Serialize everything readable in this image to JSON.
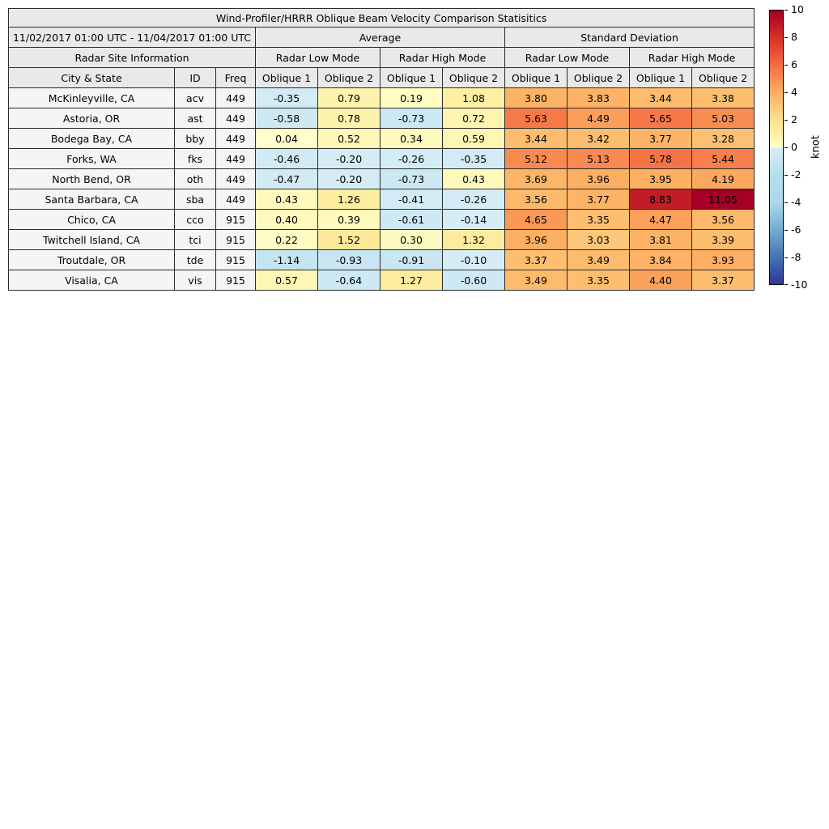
{
  "chart_data": {
    "type": "table",
    "title": "Wind-Profiler/HRRR Oblique Beam Velocity Comparison Statisitics",
    "date_range": "11/02/2017 01:00 UTC - 11/04/2017 01:00 UTC",
    "groups": {
      "average": "Average",
      "standard_deviation": "Standard Deviation",
      "site_info": "Radar Site Information",
      "low_mode": "Radar Low Mode",
      "high_mode": "Radar High Mode"
    },
    "columns": {
      "city": "City & State",
      "id": "ID",
      "freq": "Freq",
      "oblique1": "Oblique 1",
      "oblique2": "Oblique 2"
    },
    "rows": [
      {
        "city": "McKinleyville, CA",
        "id": "acv",
        "freq": "449",
        "values": [
          -0.35,
          0.79,
          0.19,
          1.08,
          3.8,
          3.83,
          3.44,
          3.38
        ]
      },
      {
        "city": "Astoria, OR",
        "id": "ast",
        "freq": "449",
        "values": [
          -0.58,
          0.78,
          -0.73,
          0.72,
          5.63,
          4.49,
          5.65,
          5.03
        ]
      },
      {
        "city": "Bodega Bay, CA",
        "id": "bby",
        "freq": "449",
        "values": [
          0.04,
          0.52,
          0.34,
          0.59,
          3.44,
          3.42,
          3.77,
          3.28
        ]
      },
      {
        "city": "Forks, WA",
        "id": "fks",
        "freq": "449",
        "values": [
          -0.46,
          -0.2,
          -0.26,
          -0.35,
          5.12,
          5.13,
          5.78,
          5.44
        ]
      },
      {
        "city": "North Bend, OR",
        "id": "oth",
        "freq": "449",
        "values": [
          -0.47,
          -0.2,
          -0.73,
          0.43,
          3.69,
          3.96,
          3.95,
          4.19
        ]
      },
      {
        "city": "Santa Barbara, CA",
        "id": "sba",
        "freq": "449",
        "values": [
          0.43,
          1.26,
          -0.41,
          -0.26,
          3.56,
          3.77,
          8.83,
          11.05
        ]
      },
      {
        "city": "Chico, CA",
        "id": "cco",
        "freq": "915",
        "values": [
          0.4,
          0.39,
          -0.61,
          -0.14,
          4.65,
          3.35,
          4.47,
          3.56
        ]
      },
      {
        "city": "Twitchell Island, CA",
        "id": "tci",
        "freq": "915",
        "values": [
          0.22,
          1.52,
          0.3,
          1.32,
          3.96,
          3.03,
          3.81,
          3.39
        ]
      },
      {
        "city": "Troutdale, OR",
        "id": "tde",
        "freq": "915",
        "values": [
          -1.14,
          -0.93,
          -0.91,
          -0.1,
          3.37,
          3.49,
          3.84,
          3.93
        ]
      },
      {
        "city": "Visalia, CA",
        "id": "vis",
        "freq": "915",
        "values": [
          0.57,
          -0.64,
          1.27,
          -0.6,
          3.49,
          3.35,
          4.4,
          3.37
        ]
      }
    ],
    "colorbar": {
      "label": "knot",
      "min": -10,
      "max": 10,
      "ticks": [
        10,
        8,
        6,
        4,
        2,
        0,
        -2,
        -4,
        -6,
        -8,
        -10
      ]
    },
    "colormap": {
      "stops": [
        {
          "value": -10,
          "color": "#313695"
        },
        {
          "value": -8,
          "color": "#4575b4"
        },
        {
          "value": -6,
          "color": "#74add1"
        },
        {
          "value": -4,
          "color": "#abd9e9"
        },
        {
          "value": -2,
          "color": "#b5ddec"
        },
        {
          "value": -0.001,
          "color": "#d9eef6"
        },
        {
          "value": 0,
          "color": "#ffffcc"
        },
        {
          "value": 1,
          "color": "#fef0a4"
        },
        {
          "value": 2,
          "color": "#fee090"
        },
        {
          "value": 4,
          "color": "#fdae61"
        },
        {
          "value": 6,
          "color": "#f46d43"
        },
        {
          "value": 8,
          "color": "#d73027"
        },
        {
          "value": 10,
          "color": "#a50026"
        }
      ]
    }
  }
}
